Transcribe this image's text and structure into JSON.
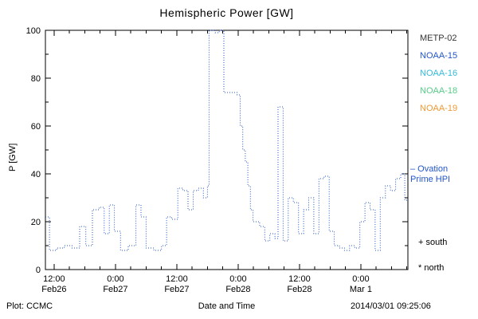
{
  "title": "Hemispheric Power [GW]",
  "footer": {
    "source": "Plot: CCMC",
    "timestamp": "2014/03/01 09:25:06"
  },
  "legend": {
    "satellites": [
      {
        "label": "METP-02",
        "color": "#333333"
      },
      {
        "label": "NOAA-15",
        "color": "#2255cc"
      },
      {
        "label": "NOAA-16",
        "color": "#33bbdd"
      },
      {
        "label": "NOAA-18",
        "color": "#55cc88"
      },
      {
        "label": "NOAA-19",
        "color": "#ee9933"
      }
    ],
    "model_line1": "– Ovation",
    "model_line2": "Prime HPI",
    "model_color": "#2255cc",
    "south_marker": "+ south",
    "north_marker": "* north"
  },
  "chart_data": {
    "type": "line",
    "line_style": "dotted-step",
    "color": "#2255cc",
    "title": "Hemispheric Power [GW]",
    "xlabel": "Date and Time",
    "ylabel": "P [GW]",
    "ylim": [
      0,
      100
    ],
    "y_ticks": [
      0,
      20,
      40,
      60,
      80,
      100
    ],
    "x_unit": "hours since 2014-02-26 12:00",
    "xlim": [
      -1.7,
      69.2
    ],
    "x_major_ticks": [
      0,
      12,
      24,
      36,
      48,
      60
    ],
    "x_tick_labels": [
      {
        "time": "12:00",
        "date": "Feb26"
      },
      {
        "time": "0:00",
        "date": "Feb27"
      },
      {
        "time": "12:00",
        "date": "Feb27"
      },
      {
        "time": "0:00",
        "date": "Feb28"
      },
      {
        "time": "12:00",
        "date": "Feb28"
      },
      {
        "time": "0:00",
        "date": "Mar 1"
      }
    ],
    "grid": false,
    "legend_position": "right-outside",
    "steps": [
      [
        -1.7,
        22
      ],
      [
        -0.9,
        8
      ],
      [
        0.5,
        9
      ],
      [
        2,
        10
      ],
      [
        3.5,
        9
      ],
      [
        5,
        18
      ],
      [
        6.2,
        10
      ],
      [
        7.5,
        25
      ],
      [
        8.8,
        26
      ],
      [
        9.8,
        15
      ],
      [
        10.8,
        27
      ],
      [
        11.8,
        16
      ],
      [
        13,
        8
      ],
      [
        14.5,
        10
      ],
      [
        16,
        27
      ],
      [
        17,
        22
      ],
      [
        18,
        9
      ],
      [
        19.5,
        8
      ],
      [
        21,
        10
      ],
      [
        22,
        22
      ],
      [
        23,
        21
      ],
      [
        24.2,
        34
      ],
      [
        25.2,
        33
      ],
      [
        26.2,
        25
      ],
      [
        27.2,
        33
      ],
      [
        28.2,
        34
      ],
      [
        29.2,
        30
      ],
      [
        30,
        35
      ],
      [
        30.3,
        100
      ],
      [
        31.5,
        99
      ],
      [
        32.3,
        100
      ],
      [
        33.2,
        74
      ],
      [
        35.8,
        73
      ],
      [
        36.4,
        60
      ],
      [
        36.9,
        50
      ],
      [
        37.4,
        45
      ],
      [
        37.9,
        35
      ],
      [
        38.4,
        25
      ],
      [
        38.9,
        20
      ],
      [
        40.2,
        18
      ],
      [
        41.2,
        12
      ],
      [
        42.2,
        15
      ],
      [
        43.2,
        13
      ],
      [
        43.8,
        68
      ],
      [
        44.8,
        12
      ],
      [
        45.8,
        30
      ],
      [
        46.8,
        28
      ],
      [
        47.8,
        15
      ],
      [
        48.8,
        25
      ],
      [
        49.8,
        30
      ],
      [
        50.8,
        15
      ],
      [
        51.8,
        38
      ],
      [
        52.8,
        39
      ],
      [
        53.8,
        16
      ],
      [
        54.8,
        10
      ],
      [
        55.8,
        9
      ],
      [
        56.8,
        8
      ],
      [
        57.8,
        10
      ],
      [
        58.8,
        9
      ],
      [
        59.8,
        20
      ],
      [
        60.8,
        28
      ],
      [
        61.8,
        25
      ],
      [
        62.8,
        8
      ],
      [
        63.8,
        30
      ],
      [
        64.8,
        35
      ],
      [
        65.8,
        33
      ],
      [
        66.8,
        38
      ],
      [
        67.8,
        40
      ],
      [
        68.6,
        29
      ]
    ]
  }
}
